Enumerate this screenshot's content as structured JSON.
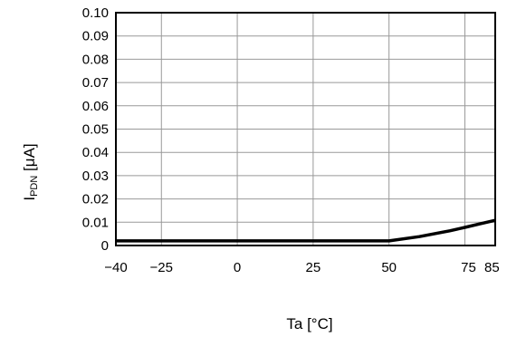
{
  "chart_data": {
    "type": "line",
    "title": "",
    "xlabel": "Ta [°C]",
    "ylabel_main": "I",
    "ylabel_sub": "PDN",
    "ylabel_unit": " [μA]",
    "xlim": [
      -40,
      85
    ],
    "ylim": [
      0,
      0.1
    ],
    "grid": true,
    "x_ticks": [
      -40,
      -25,
      0,
      25,
      50,
      75,
      85
    ],
    "x_tick_labels": [
      "−40",
      "−25",
      "0",
      "25",
      "50",
      "75",
      "85"
    ],
    "y_ticks": [
      0,
      0.01,
      0.02,
      0.03,
      0.04,
      0.05,
      0.06,
      0.07,
      0.08,
      0.09,
      0.1
    ],
    "y_tick_labels": [
      "0",
      "0.01",
      "0.02",
      "0.03",
      "0.04",
      "0.05",
      "0.06",
      "0.07",
      "0.08",
      "0.09",
      "0.10"
    ],
    "series": [
      {
        "x": [
          -40,
          -25,
          0,
          25,
          50,
          60,
          70,
          75,
          80,
          85
        ],
        "y": [
          0.002,
          0.002,
          0.002,
          0.002,
          0.002,
          0.0038,
          0.0063,
          0.0078,
          0.0093,
          0.0108
        ]
      }
    ]
  }
}
